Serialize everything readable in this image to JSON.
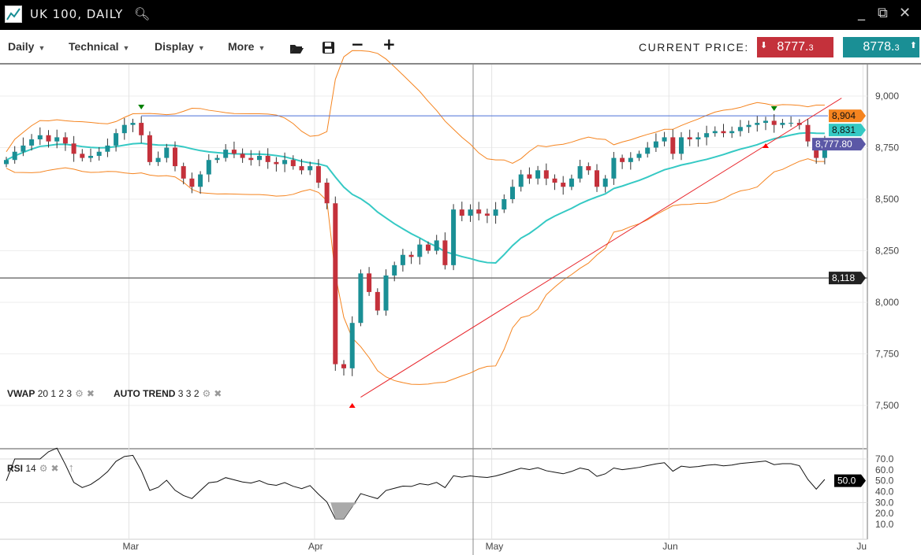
{
  "window": {
    "title": "UK 100, DAILY",
    "search_icon": "search-icon",
    "minimize": "_",
    "restore": "⧉",
    "close": "✕"
  },
  "toolbar": {
    "menus": [
      "Daily",
      "Technical",
      "Display",
      "More"
    ],
    "open_icon": "folder-open-icon",
    "save_icon": "save-icon",
    "zoom_out": "−",
    "zoom_in": "+",
    "current_price_label": "CURRENT PRICE:"
  },
  "prices": {
    "bid_main": "8777.",
    "bid_small": "3",
    "ask_main": "8778.",
    "ask_small": "3",
    "bid_color": "#c4313b",
    "ask_color": "#1a8f95"
  },
  "legend": {
    "vwap_name": "VWAP",
    "vwap_params": "20 1 2 3",
    "trend_name": "AUTO TREND",
    "trend_params": "3 3 2",
    "rsi_name": "RSI",
    "rsi_params": "14"
  },
  "axis": {
    "price_ticks": [
      {
        "v": 9000,
        "label": "9,000"
      },
      {
        "v": 8750,
        "label": "8,750"
      },
      {
        "v": 8500,
        "label": "8,500"
      },
      {
        "v": 8250,
        "label": "8,250"
      },
      {
        "v": 8000,
        "label": "8,000"
      },
      {
        "v": 7750,
        "label": "7,750"
      },
      {
        "v": 7500,
        "label": "7,500"
      }
    ],
    "rsi_ticks": [
      "70.0",
      "60.0",
      "50.0",
      "40.0",
      "30.0",
      "20.0",
      "10.0"
    ],
    "months": [
      {
        "label": "Mar",
        "index": 15
      },
      {
        "label": "Apr",
        "index": 37
      },
      {
        "label": "May",
        "index": 58
      },
      {
        "label": "Jun",
        "index": 79
      },
      {
        "label": "Ju",
        "index": 102
      }
    ]
  },
  "price_tags": [
    {
      "label": "8,904",
      "value": 8904,
      "color": "#f5841f"
    },
    {
      "label": "8,831",
      "value": 8831,
      "color": "#35c9c4"
    },
    {
      "label": "8,777.80",
      "value": 8777.8,
      "color": "#5b58a6"
    },
    {
      "label": "8,118",
      "value": 8118,
      "color": "#222222"
    }
  ],
  "rsi_tag": {
    "label": "50.0",
    "value": 50
  },
  "lines": {
    "resistance": 8904,
    "support": 8118,
    "trend_start": {
      "index": 42,
      "value": 7540
    },
    "trend_end": {
      "index": 99,
      "value": 8990
    }
  },
  "colors": {
    "up": "#1a8f95",
    "down": "#c4313b",
    "band": "#f5841f",
    "mid": "#35c9c4",
    "trend": "#e8252b",
    "resistance": "#4a6fd6"
  },
  "chart_data": {
    "type": "candlestick",
    "closes": [
      8690,
      8730,
      8760,
      8790,
      8810,
      8780,
      8800,
      8770,
      8720,
      8700,
      8710,
      8730,
      8760,
      8820,
      8860,
      8870,
      8810,
      8680,
      8700,
      8750,
      8660,
      8600,
      8560,
      8620,
      8690,
      8700,
      8740,
      8720,
      8700,
      8690,
      8710,
      8680,
      8670,
      8690,
      8660,
      8640,
      8660,
      8580,
      8480,
      7700,
      7680,
      7900,
      8140,
      8050,
      7960,
      8130,
      8180,
      8230,
      8220,
      8280,
      8250,
      8300,
      8180,
      8450,
      8420,
      8450,
      8430,
      8420,
      8450,
      8500,
      8560,
      8620,
      8600,
      8640,
      8600,
      8580,
      8560,
      8600,
      8660,
      8640,
      8560,
      8600,
      8700,
      8680,
      8700,
      8720,
      8750,
      8780,
      8800,
      8720,
      8800,
      8790,
      8800,
      8820,
      8830,
      8820,
      8830,
      8850,
      8860,
      8870,
      8880,
      8860,
      8870,
      8870,
      8860,
      8780,
      8700,
      8777.8
    ],
    "ylim": [
      7400,
      9100
    ]
  }
}
